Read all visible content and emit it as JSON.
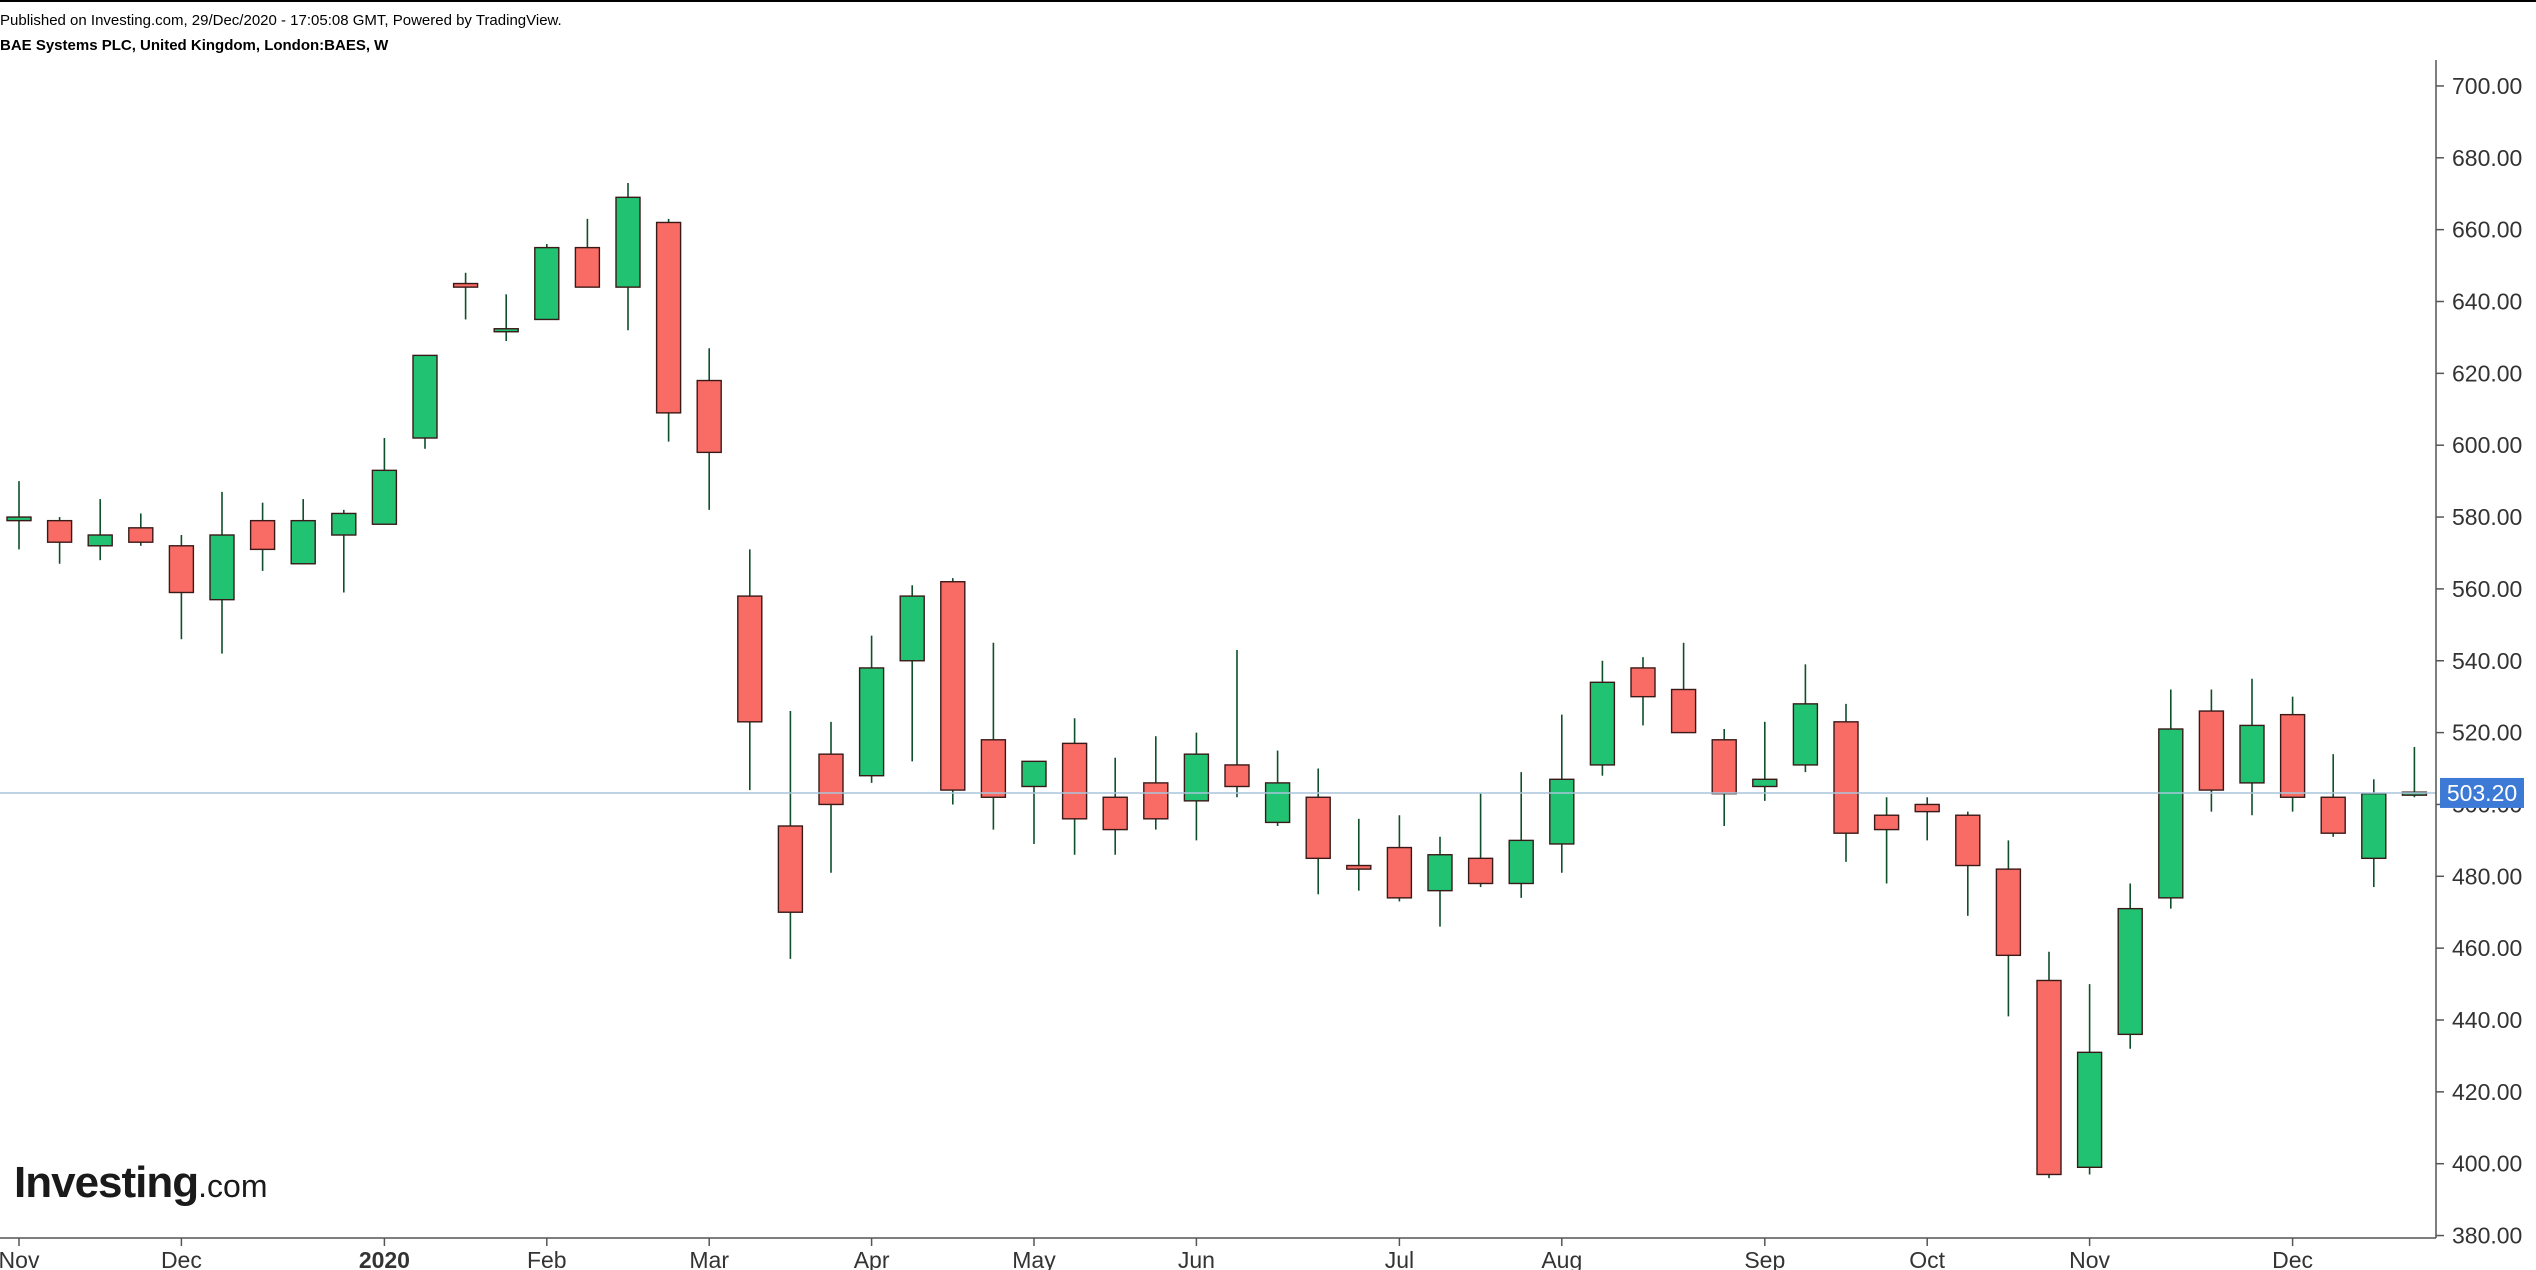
{
  "header": {
    "published": "Published on Investing.com, 29/Dec/2020 - 17:05:08 GMT, Powered by TradingView.",
    "symbol": "BAE Systems PLC, United Kingdom, London:BAES, W"
  },
  "logo": {
    "brand": "Investing",
    "tld": ".com"
  },
  "colors": {
    "up": "#22c273",
    "down": "#f96b65",
    "wick": "#0f4f2a",
    "border": "#3a1a18",
    "price_line": "#a8c6dc",
    "price_label_bg": "#3d7ad6",
    "axis": "#555555"
  },
  "chart_data": {
    "type": "candlestick",
    "title": "BAE Systems PLC, United Kingdom, London:BAES, W",
    "interval": "W",
    "ylim": [
      380,
      705
    ],
    "y_ticks": [
      380,
      400,
      420,
      440,
      460,
      480,
      500,
      520,
      540,
      560,
      580,
      600,
      620,
      640,
      660,
      680,
      700
    ],
    "y_tick_labels": [
      "380.00",
      "400.00",
      "420.00",
      "440.00",
      "460.00",
      "480.00",
      "500.00",
      "520.00",
      "540.00",
      "560.00",
      "580.00",
      "600.00",
      "620.00",
      "640.00",
      "660.00",
      "680.00",
      "700.00"
    ],
    "last_price": 503.2,
    "last_price_label": "503.20",
    "x_ticks": [
      {
        "label": "Nov",
        "week": 0,
        "bold": false
      },
      {
        "label": "Dec",
        "week": 4,
        "bold": false
      },
      {
        "label": "2020",
        "week": 9,
        "bold": true
      },
      {
        "label": "Feb",
        "week": 13,
        "bold": false
      },
      {
        "label": "Mar",
        "week": 17,
        "bold": false
      },
      {
        "label": "Apr",
        "week": 21,
        "bold": false
      },
      {
        "label": "May",
        "week": 25,
        "bold": false
      },
      {
        "label": "Jun",
        "week": 29,
        "bold": false
      },
      {
        "label": "Jul",
        "week": 34,
        "bold": false
      },
      {
        "label": "Aug",
        "week": 38,
        "bold": false
      },
      {
        "label": "Sep",
        "week": 43,
        "bold": false
      },
      {
        "label": "Oct",
        "week": 47,
        "bold": false
      },
      {
        "label": "Nov",
        "week": 51,
        "bold": false
      },
      {
        "label": "Dec",
        "week": 56,
        "bold": false
      }
    ],
    "candles": [
      {
        "o": 579,
        "h": 590,
        "l": 571,
        "c": 580
      },
      {
        "o": 579,
        "h": 580,
        "l": 567,
        "c": 573
      },
      {
        "o": 572,
        "h": 585,
        "l": 568,
        "c": 575
      },
      {
        "o": 577,
        "h": 581,
        "l": 572,
        "c": 573
      },
      {
        "o": 572,
        "h": 575,
        "l": 546,
        "c": 559
      },
      {
        "o": 557,
        "h": 587,
        "l": 542,
        "c": 575
      },
      {
        "o": 579,
        "h": 584,
        "l": 565,
        "c": 571
      },
      {
        "o": 567,
        "h": 585,
        "l": 567,
        "c": 579
      },
      {
        "o": 575,
        "h": 582,
        "l": 559,
        "c": 581
      },
      {
        "o": 578,
        "h": 602,
        "l": 578,
        "c": 593
      },
      {
        "o": 602,
        "h": 625,
        "l": 599,
        "c": 625
      },
      {
        "o": 645,
        "h": 648,
        "l": 635,
        "c": 644
      },
      {
        "o": 632,
        "h": 642,
        "l": 629,
        "c": 632
      },
      {
        "o": 635,
        "h": 656,
        "l": 635,
        "c": 655
      },
      {
        "o": 655,
        "h": 663,
        "l": 644,
        "c": 644
      },
      {
        "o": 644,
        "h": 673,
        "l": 632,
        "c": 669
      },
      {
        "o": 662,
        "h": 663,
        "l": 601,
        "c": 609
      },
      {
        "o": 618,
        "h": 627,
        "l": 582,
        "c": 598
      },
      {
        "o": 558,
        "h": 571,
        "l": 504,
        "c": 523
      },
      {
        "o": 494,
        "h": 526,
        "l": 457,
        "c": 470
      },
      {
        "o": 514,
        "h": 523,
        "l": 481,
        "c": 500
      },
      {
        "o": 508,
        "h": 547,
        "l": 506,
        "c": 538
      },
      {
        "o": 540,
        "h": 561,
        "l": 512,
        "c": 558
      },
      {
        "o": 562,
        "h": 563,
        "l": 500,
        "c": 504
      },
      {
        "o": 518,
        "h": 545,
        "l": 493,
        "c": 502
      },
      {
        "o": 505,
        "h": 512,
        "l": 489,
        "c": 512
      },
      {
        "o": 517,
        "h": 524,
        "l": 486,
        "c": 496
      },
      {
        "o": 502,
        "h": 513,
        "l": 486,
        "c": 493
      },
      {
        "o": 506,
        "h": 519,
        "l": 493,
        "c": 496
      },
      {
        "o": 501,
        "h": 520,
        "l": 490,
        "c": 514
      },
      {
        "o": 511,
        "h": 543,
        "l": 502,
        "c": 505
      },
      {
        "o": 495,
        "h": 515,
        "l": 494,
        "c": 506
      },
      {
        "o": 502,
        "h": 510,
        "l": 475,
        "c": 485
      },
      {
        "o": 483,
        "h": 496,
        "l": 476,
        "c": 482
      },
      {
        "o": 488,
        "h": 497,
        "l": 473,
        "c": 474
      },
      {
        "o": 476,
        "h": 491,
        "l": 466,
        "c": 486
      },
      {
        "o": 485,
        "h": 503,
        "l": 477,
        "c": 478
      },
      {
        "o": 478,
        "h": 509,
        "l": 474,
        "c": 490
      },
      {
        "o": 489,
        "h": 525,
        "l": 481,
        "c": 507
      },
      {
        "o": 511,
        "h": 540,
        "l": 508,
        "c": 534
      },
      {
        "o": 538,
        "h": 541,
        "l": 522,
        "c": 530
      },
      {
        "o": 532,
        "h": 545,
        "l": 520,
        "c": 520
      },
      {
        "o": 518,
        "h": 521,
        "l": 494,
        "c": 503
      },
      {
        "o": 505,
        "h": 523,
        "l": 501,
        "c": 507
      },
      {
        "o": 511,
        "h": 539,
        "l": 509,
        "c": 528
      },
      {
        "o": 523,
        "h": 528,
        "l": 484,
        "c": 492
      },
      {
        "o": 497,
        "h": 502,
        "l": 478,
        "c": 493
      },
      {
        "o": 500,
        "h": 502,
        "l": 490,
        "c": 498
      },
      {
        "o": 497,
        "h": 498,
        "l": 469,
        "c": 483
      },
      {
        "o": 482,
        "h": 490,
        "l": 441,
        "c": 458
      },
      {
        "o": 451,
        "h": 459,
        "l": 396,
        "c": 397
      },
      {
        "o": 399,
        "h": 450,
        "l": 397,
        "c": 431
      },
      {
        "o": 436,
        "h": 478,
        "l": 432,
        "c": 471
      },
      {
        "o": 474,
        "h": 532,
        "l": 471,
        "c": 521
      },
      {
        "o": 526,
        "h": 532,
        "l": 498,
        "c": 504
      },
      {
        "o": 506,
        "h": 535,
        "l": 497,
        "c": 522
      },
      {
        "o": 525,
        "h": 530,
        "l": 498,
        "c": 502
      },
      {
        "o": 502,
        "h": 514,
        "l": 491,
        "c": 492
      },
      {
        "o": 485,
        "h": 507,
        "l": 477,
        "c": 503
      },
      {
        "o": 503,
        "h": 516,
        "l": 502,
        "c": 503
      }
    ]
  }
}
